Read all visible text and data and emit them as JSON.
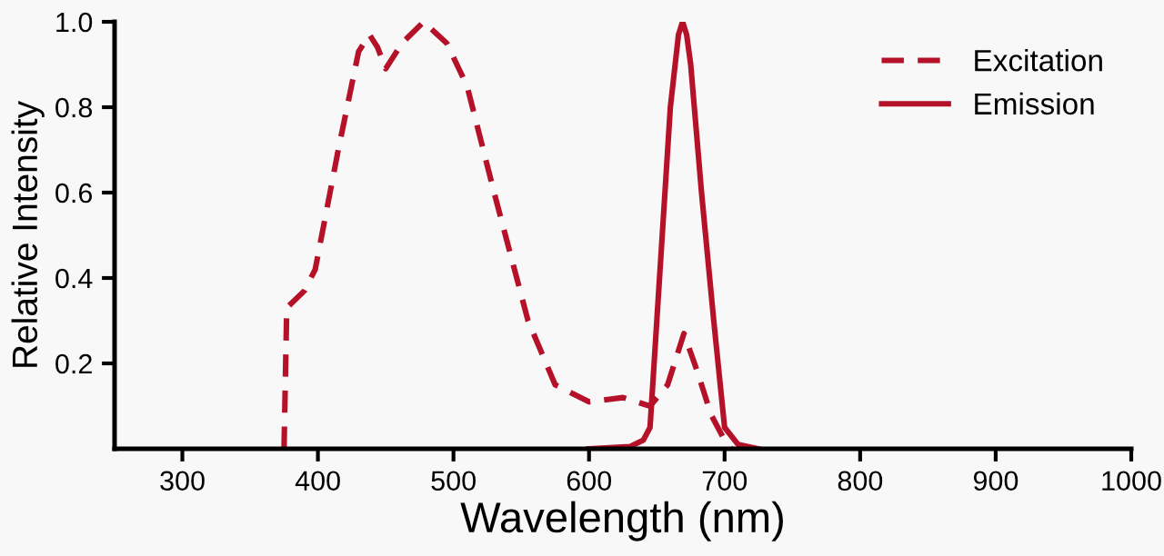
{
  "chart_data": {
    "type": "line",
    "xlabel": "Wavelength (nm)",
    "ylabel": "Relative Intensity",
    "xlim": [
      250,
      1000
    ],
    "xticks": [
      300,
      400,
      500,
      600,
      700,
      800,
      900,
      1000
    ],
    "ylim": [
      0,
      1.0
    ],
    "yticks": [
      0.2,
      0.4,
      0.6,
      0.8,
      {
        "value": 1.0,
        "label": "1.0"
      }
    ],
    "legend": "top right",
    "grid": false,
    "series": [
      {
        "name": "Excitation",
        "color": "#b5122a",
        "line_style": "dashed",
        "x": [
          375,
          377,
          390,
          398,
          415,
          430,
          438,
          444,
          450,
          462,
          478,
          495,
          510,
          530,
          555,
          575,
          600,
          625,
          645,
          658,
          670,
          680,
          690,
          700,
          705
        ],
        "values": [
          0,
          0.33,
          0.37,
          0.42,
          0.7,
          0.93,
          0.97,
          0.94,
          0.89,
          0.95,
          1.0,
          0.95,
          0.85,
          0.6,
          0.3,
          0.15,
          0.11,
          0.12,
          0.1,
          0.15,
          0.27,
          0.18,
          0.08,
          0.02,
          0
        ]
      },
      {
        "name": "Emission",
        "color": "#b5122a",
        "line_style": "solid",
        "x": [
          600,
          630,
          640,
          645,
          652,
          660,
          666,
          669,
          672,
          675,
          683,
          692,
          700,
          710,
          725
        ],
        "values": [
          0,
          0.005,
          0.02,
          0.05,
          0.4,
          0.8,
          0.97,
          1.0,
          0.97,
          0.9,
          0.6,
          0.3,
          0.05,
          0.01,
          0
        ]
      }
    ]
  }
}
